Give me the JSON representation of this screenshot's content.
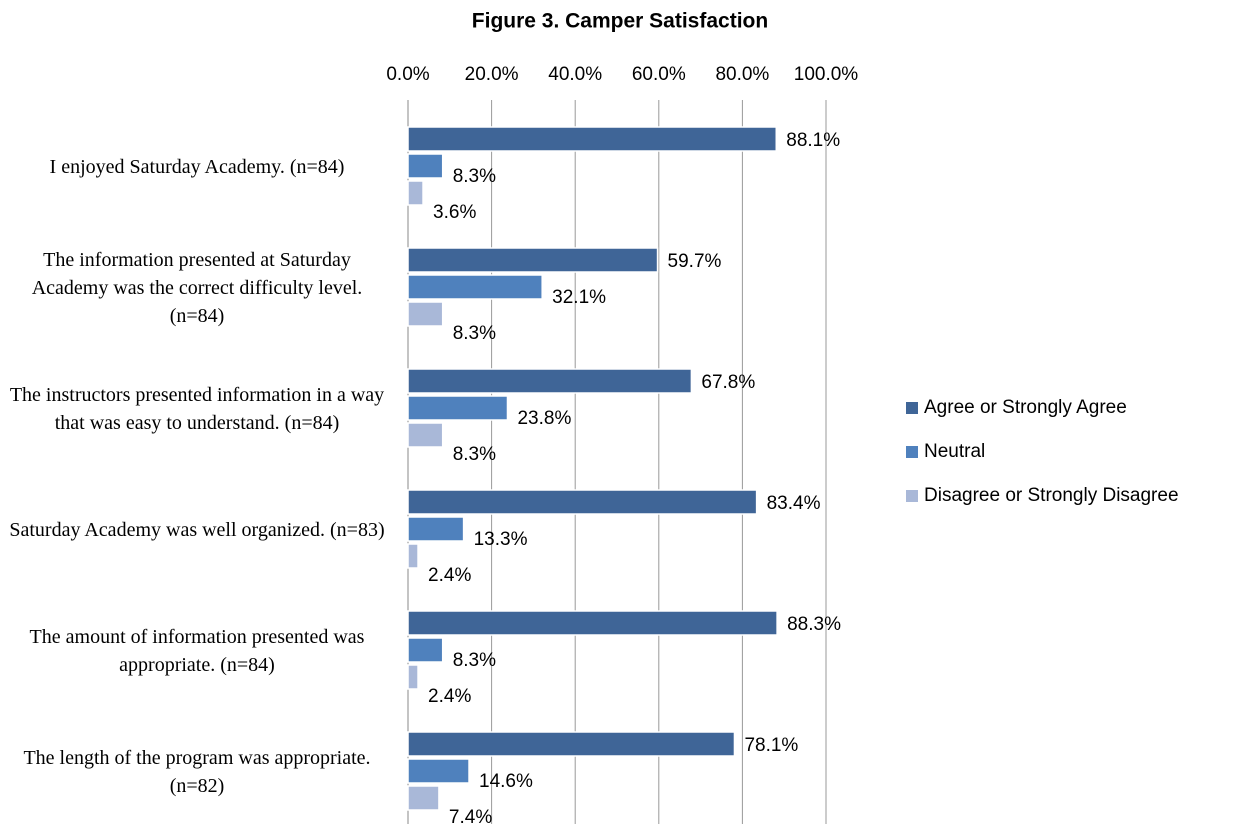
{
  "chart_data": {
    "type": "bar",
    "orientation": "horizontal",
    "title": "Figure 3. Camper Satisfaction",
    "categories": [
      "I enjoyed Saturday Academy. (n=84)",
      "The information presented at Saturday Academy was the correct difficulty level. (n=84)",
      "The instructors presented information in a way that was easy to understand. (n=84)",
      "Saturday Academy was well organized. (n=83)",
      "The amount of information presented was appropriate. (n=84)",
      "The length of the program was appropriate. (n=82)"
    ],
    "series": [
      {
        "name": "Agree or Strongly Agree",
        "color": "#3f6597",
        "values": [
          88.1,
          59.7,
          67.8,
          83.4,
          88.3,
          78.1
        ],
        "value_labels": [
          "88.1%",
          "59.7%",
          "67.8%",
          "83.4%",
          "88.3%",
          "78.1%"
        ]
      },
      {
        "name": "Neutral",
        "color": "#4f81bd",
        "values": [
          8.3,
          32.1,
          23.8,
          13.3,
          8.3,
          14.6
        ],
        "value_labels": [
          "8.3%",
          "32.1%",
          "23.8%",
          "13.3%",
          "8.3%",
          "14.6%"
        ]
      },
      {
        "name": "Disagree or Strongly Disagree",
        "color": "#a9b8d8",
        "values": [
          3.6,
          8.3,
          8.3,
          2.4,
          2.4,
          7.4
        ],
        "value_labels": [
          "3.6%",
          "8.3%",
          "8.3%",
          "2.4%",
          "2.4%",
          "7.4%"
        ]
      }
    ],
    "xlim": [
      0,
      100
    ],
    "xticks": [
      {
        "value": 0,
        "label": "0.0%"
      },
      {
        "value": 20,
        "label": "20.0%"
      },
      {
        "value": 40,
        "label": "40.0%"
      },
      {
        "value": 60,
        "label": "60.0%"
      },
      {
        "value": 80,
        "label": "80.0%"
      },
      {
        "value": 100,
        "label": "100.0%"
      }
    ],
    "grid": true,
    "legend": "right"
  }
}
